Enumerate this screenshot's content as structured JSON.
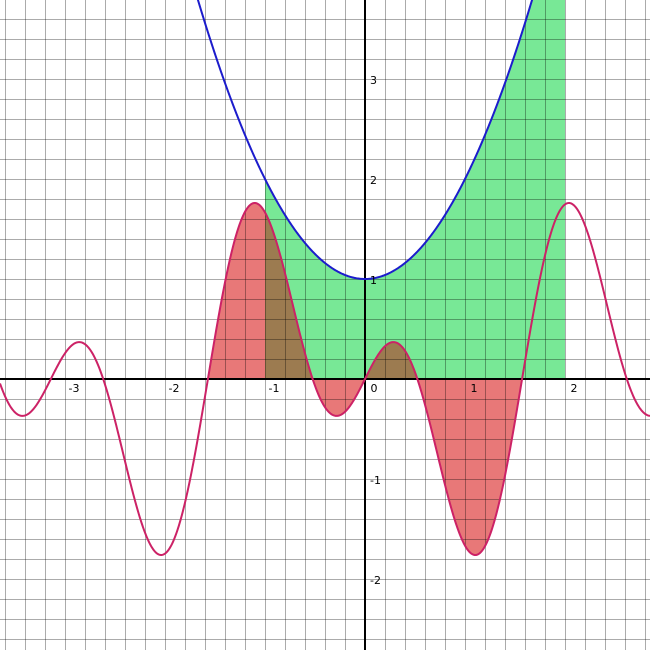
{
  "chart_data": {
    "type": "line",
    "title": "",
    "xlabel": "",
    "ylabel": "",
    "xlim": [
      -3.65,
      2.85
    ],
    "ylim": [
      -2.71,
      3.79
    ],
    "grid": true,
    "grid_step": 0.2,
    "x_ticks": [
      {
        "value": -3,
        "label": "-3"
      },
      {
        "value": -2,
        "label": "-2"
      },
      {
        "value": -1,
        "label": "-1"
      },
      {
        "value": 0,
        "label": "0"
      },
      {
        "value": 1,
        "label": "1"
      },
      {
        "value": 2,
        "label": "2"
      }
    ],
    "y_ticks": [
      {
        "value": 3,
        "label": "3"
      },
      {
        "value": 2,
        "label": "2"
      },
      {
        "value": 1,
        "label": "1"
      },
      {
        "value": -1,
        "label": "-1"
      },
      {
        "value": -2,
        "label": "-2"
      }
    ],
    "series": [
      {
        "function": "x^2 + 1",
        "color": "#1c1ccc"
      },
      {
        "function": "sin(4x) - sin(2x)",
        "color": "#cc2266"
      }
    ],
    "shaded_regions": [
      {
        "function": "sin(4x) - sin(2x)",
        "from": -1.5708,
        "to": 1.5708,
        "color": "#e87878"
      },
      {
        "function": "x^2 + 1",
        "from": -1,
        "to": 2,
        "color": "#78e896"
      }
    ],
    "overlap_color": "#9c7b50"
  }
}
